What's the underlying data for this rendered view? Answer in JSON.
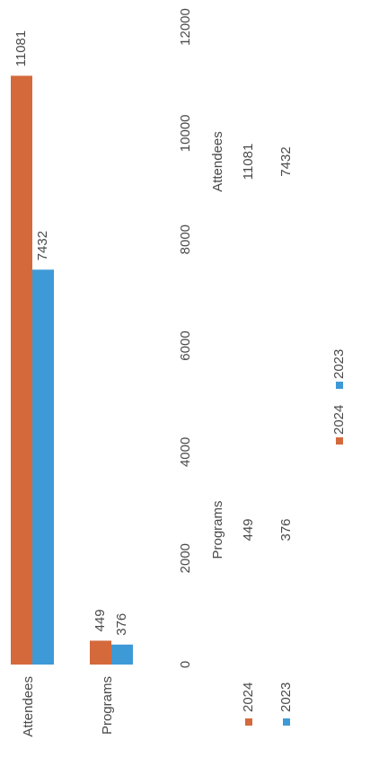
{
  "chart_data": {
    "type": "bar",
    "orientation": "horizontal",
    "categories": [
      "Programs",
      "Attendees"
    ],
    "series": [
      {
        "name": "2024",
        "color": "#d4693c",
        "values": [
          449,
          11081
        ]
      },
      {
        "name": "2023",
        "color": "#3d9ad6",
        "values": [
          376,
          7432
        ]
      }
    ],
    "xlim": [
      0,
      12000
    ],
    "xticks": [
      0,
      2000,
      4000,
      6000,
      8000,
      10000,
      12000
    ],
    "data_labels": true,
    "data_table": true,
    "legend": "bottom"
  }
}
